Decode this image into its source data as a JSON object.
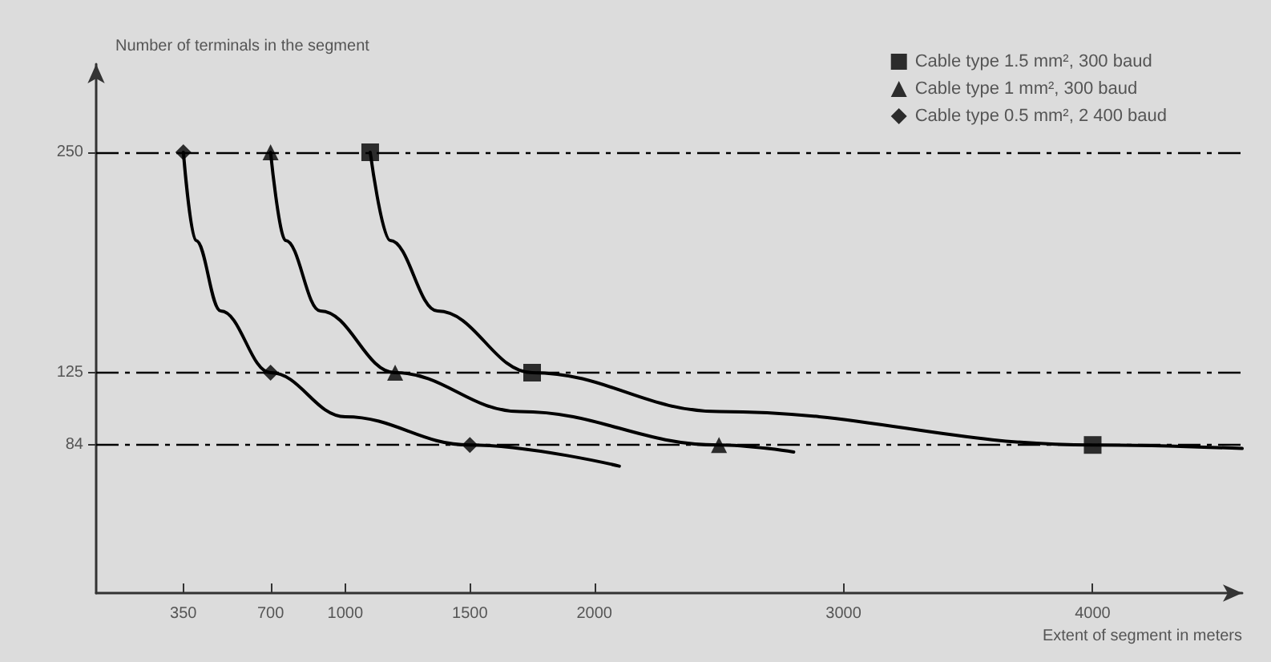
{
  "chart_data": {
    "type": "line",
    "xlabel": "Extent of segment in meters",
    "ylabel": "Number of terminals in the segment",
    "xlim": [
      0,
      4600
    ],
    "xticks": [
      350,
      700,
      1000,
      1500,
      2000,
      3000,
      4000
    ],
    "ylim": [
      0,
      300
    ],
    "yticks": [
      84,
      125,
      250
    ],
    "grid": false,
    "legend": "top right",
    "series": [
      {
        "type": "line",
        "color": "#000000",
        "marker": "none",
        "x": [
          1100,
          1180,
          1370,
          1750,
          2500,
          4000,
          4600
        ],
        "values": [
          250,
          200,
          160,
          125,
          103,
          84,
          82
        ]
      },
      {
        "type": "line",
        "color": "#000000",
        "marker": "none",
        "x": [
          700,
          760,
          900,
          1200,
          1700,
          2500,
          2800
        ],
        "values": [
          250,
          200,
          160,
          125,
          103,
          84,
          80
        ]
      },
      {
        "color": "#000000",
        "marker": "none",
        "x": [
          350,
          400,
          500,
          700,
          1000,
          1500,
          2100
        ],
        "values": [
          250,
          200,
          160,
          125,
          100,
          84,
          72
        ]
      },
      {
        "type": "scatter",
        "name": "Cable type 1.5 mm², 300 baud",
        "color": "#000000",
        "marker": "square",
        "x": [
          1100,
          1750,
          4000
        ],
        "values": [
          250,
          125,
          84
        ]
      },
      {
        "type": "scatter",
        "name": "Cable type 1 mm², 300 baud",
        "color": "#000000",
        "marker": "triangle",
        "x": [
          700,
          1200,
          2500
        ],
        "values": [
          250,
          125,
          84
        ]
      },
      {
        "type": "scatter",
        "name": "Cable type 0.5 mm², 2 400 baud",
        "color": "#000000",
        "marker": "diamond",
        "x": [
          350,
          700,
          1500
        ],
        "values": [
          250,
          125,
          84
        ]
      }
    ],
    "ref_lines": [
      {
        "axis": "y",
        "value": 250,
        "line_style": "dashed",
        "color": "#000000"
      },
      {
        "axis": "y",
        "value": 125,
        "line_style": "dashed",
        "color": "#000000"
      },
      {
        "axis": "y",
        "value": 84,
        "line_style": "dashed",
        "color": "#000000"
      }
    ]
  }
}
